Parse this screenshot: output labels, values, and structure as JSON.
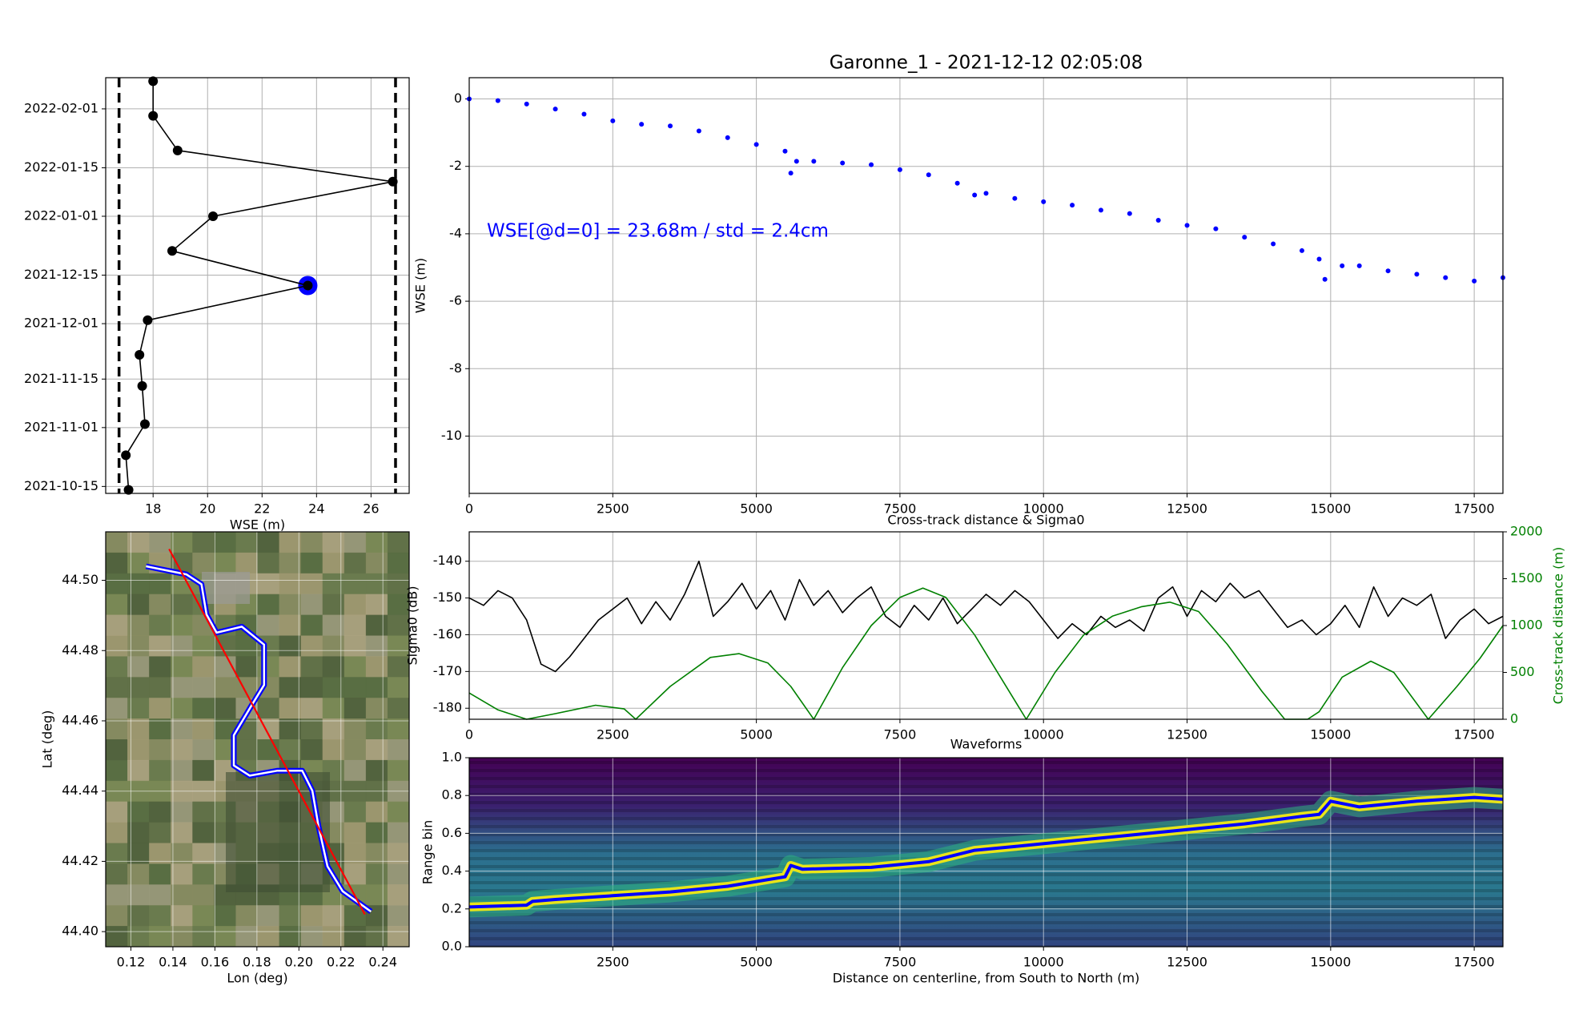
{
  "chart_data": [
    {
      "type": "line",
      "xlabel": "WSE (m)",
      "xlim": [
        16.26,
        27.4
      ],
      "xticks": [
        18,
        20,
        22,
        24,
        26
      ],
      "ylim": [
        "2021-10-13",
        "2022-02-10"
      ],
      "yticks": [
        "2021-10-15",
        "2021-11-01",
        "2021-11-15",
        "2021-12-01",
        "2021-12-15",
        "2022-01-01",
        "2022-01-15",
        "2022-02-01"
      ],
      "grid": true,
      "vlines": [
        16.75,
        26.9
      ],
      "vline_color": "black",
      "series": [
        {
          "color": "blue",
          "marker": "big-dot",
          "x": [
            23.68
          ],
          "values": [
            "2021-12-12"
          ]
        },
        {
          "color": "black",
          "marker": "dot",
          "x": [
            17.1,
            17.0,
            17.7,
            17.6,
            17.5,
            17.8,
            23.68,
            18.7,
            20.2,
            26.8,
            18.9,
            18.0,
            18.0
          ],
          "values": [
            "2021-10-14",
            "2021-10-24",
            "2021-11-02",
            "2021-11-13",
            "2021-11-22",
            "2021-12-02",
            "2021-12-12",
            "2021-12-22",
            "2022-01-01",
            "2022-01-11",
            "2022-01-20",
            "2022-01-30",
            "2022-02-09"
          ]
        }
      ]
    },
    {
      "type": "scatter",
      "title": "Garonne_1 - 2021-12-12 02:05:08",
      "ylabel": "WSE (m)",
      "annotation": "WSE[@d=0] = 23.68m / std = 2.4cm",
      "annotation_color": "blue",
      "xlim": [
        0,
        18000
      ],
      "xticks": [
        0,
        2500,
        5000,
        7500,
        10000,
        12500,
        15000,
        17500
      ],
      "ylim": [
        -11.7,
        0.63
      ],
      "yticks": [
        0,
        -2,
        -4,
        -6,
        -8,
        -10
      ],
      "grid": true,
      "series": [
        {
          "color": "blue",
          "x": [
            0,
            500,
            1000,
            1500,
            2000,
            2500,
            3000,
            3500,
            4000,
            4500,
            5000,
            5500,
            5600,
            5700,
            6000,
            6500,
            7000,
            7500,
            8000,
            8500,
            8800,
            9000,
            9500,
            10000,
            10500,
            11000,
            11500,
            12000,
            12500,
            13000,
            13500,
            14000,
            14500,
            14800,
            14900,
            15200,
            15500,
            16000,
            16500,
            17000,
            17500,
            18000
          ],
          "values": [
            0,
            -0.05,
            -0.15,
            -0.3,
            -0.45,
            -0.65,
            -0.75,
            -0.8,
            -0.95,
            -1.15,
            -1.35,
            -1.55,
            -2.2,
            -1.85,
            -1.85,
            -1.9,
            -1.95,
            -2.1,
            -2.25,
            -2.5,
            -2.85,
            -2.8,
            -2.95,
            -3.05,
            -3.15,
            -3.3,
            -3.4,
            -3.6,
            -3.75,
            -3.85,
            -4.1,
            -4.3,
            -4.5,
            -4.75,
            -5.35,
            -4.95,
            -4.95,
            -5.1,
            -5.2,
            -5.3,
            -5.4,
            -5.3
          ]
        }
      ]
    },
    {
      "type": "line",
      "background": "satellite",
      "xlabel": "Lon (deg)",
      "ylabel": "Lat (deg)",
      "xlim": [
        0.108,
        0.2525
      ],
      "xticks": [
        0.12,
        0.14,
        0.16,
        0.18,
        {
          "value": 0.2,
          "label": "0.20"
        },
        0.22,
        0.24
      ],
      "ylim": [
        44.3957,
        44.5138
      ],
      "yticks": [
        {
          "value": 44.4,
          "label": "44.40"
        },
        44.42,
        44.44,
        44.46,
        44.48,
        {
          "value": 44.5,
          "label": "44.50"
        }
      ],
      "grid": true,
      "series": [
        {
          "color": "blue",
          "inner_color": "white",
          "x": [
            0.1272,
            0.1464,
            0.1536,
            0.156,
            0.1608,
            0.1728,
            0.1834,
            0.1834,
            0.1776,
            0.169,
            0.169,
            0.1766,
            0.1896,
            0.2016,
            0.2064,
            0.2093,
            0.2136,
            0.2208,
            0.2343
          ],
          "values": [
            44.504,
            44.5017,
            44.4989,
            44.4903,
            44.4851,
            44.4868,
            44.4817,
            44.4702,
            44.4645,
            44.4559,
            44.4473,
            44.4444,
            44.4458,
            44.4458,
            44.4401,
            44.4301,
            44.4186,
            44.4115,
            44.4057
          ]
        },
        {
          "color": "red",
          "x": [
            0.1382,
            0.2314
          ],
          "values": [
            44.5089,
            44.4049
          ]
        }
      ]
    },
    {
      "type": "line",
      "title": "Cross-track distance & Sigma0",
      "ylabel": "Sigma0 (dB)",
      "y2label": "Cross-track distance (m)",
      "y2_color": "green",
      "xlim": [
        0,
        18000
      ],
      "xticks": [
        0,
        2500,
        5000,
        7500,
        10000,
        12500,
        15000,
        17500
      ],
      "ylim": [
        -183,
        -132
      ],
      "yticks": [
        -180,
        -170,
        -160,
        -150,
        -140
      ],
      "y2lim": [
        0,
        2000
      ],
      "y2ticks": [
        0,
        500,
        1000,
        1500,
        2000
      ],
      "grid": true,
      "series": [
        {
          "color": "black",
          "x": [
            0,
            250,
            500,
            750,
            1000,
            1250,
            1500,
            1750,
            2000,
            2250,
            2500,
            2750,
            3000,
            3250,
            3500,
            3750,
            4000,
            4250,
            4500,
            4750,
            5000,
            5250,
            5500,
            5750,
            6000,
            6250,
            6500,
            6750,
            7000,
            7250,
            7500,
            7750,
            8000,
            8250,
            8500,
            8750,
            9000,
            9250,
            9500,
            9750,
            10000,
            10250,
            10500,
            10750,
            11000,
            11250,
            11500,
            11750,
            12000,
            12250,
            12500,
            12750,
            13000,
            13250,
            13500,
            13750,
            14000,
            14250,
            14500,
            14750,
            15000,
            15250,
            15500,
            15750,
            16000,
            16250,
            16500,
            16750,
            17000,
            17250,
            17500,
            17750,
            18000
          ],
          "values": [
            -150,
            -152,
            -148,
            -150,
            -156,
            -168,
            -170,
            -166,
            -161,
            -156,
            -153,
            -150,
            -157,
            -151,
            -156,
            -149,
            -140,
            -155,
            -151,
            -146,
            -153,
            -148,
            -156,
            -145,
            -152,
            -148,
            -154,
            -150,
            -147,
            -155,
            -158,
            -152,
            -156,
            -150,
            -157,
            -153,
            -149,
            -152,
            -148,
            -151,
            -156,
            -161,
            -157,
            -160,
            -155,
            -158,
            -156,
            -159,
            -150,
            -147,
            -155,
            -148,
            -151,
            -146,
            -150,
            -148,
            -153,
            -158,
            -156,
            -160,
            -157,
            -152,
            -158,
            -147,
            -155,
            -150,
            -152,
            -149,
            -161,
            -156,
            -153,
            -157,
            -155
          ]
        },
        {
          "color": "green",
          "axis": "y2",
          "x": [
            0,
            500,
            1000,
            1500,
            2200,
            2700,
            2900,
            3500,
            4200,
            4700,
            5200,
            5600,
            6000,
            6500,
            7000,
            7500,
            7900,
            8300,
            8800,
            9300,
            9700,
            10200,
            10700,
            11200,
            11700,
            12200,
            12700,
            13200,
            13800,
            14200,
            14600,
            14800,
            15200,
            15700,
            16100,
            16700,
            17200,
            17600,
            18000
          ],
          "values": [
            280,
            100,
            0,
            60,
            150,
            110,
            0,
            350,
            660,
            700,
            600,
            350,
            0,
            550,
            1000,
            1300,
            1400,
            1300,
            900,
            400,
            0,
            500,
            900,
            1100,
            1200,
            1250,
            1150,
            800,
            300,
            0,
            0,
            80,
            450,
            620,
            500,
            0,
            350,
            650,
            1000
          ]
        }
      ]
    },
    {
      "type": "line",
      "background": "viridis",
      "title": "Waveforms",
      "xlabel": "Distance on centerline, from South to North (m)",
      "ylabel": "Range bin",
      "xlim": [
        0,
        18000
      ],
      "xticks": [
        2500,
        5000,
        7500,
        10000,
        12500,
        15000,
        17500
      ],
      "ylim": [
        0,
        1
      ],
      "yticks": [
        {
          "value": 0,
          "label": "0.0"
        },
        0.2,
        0.4,
        0.6,
        0.8,
        {
          "value": 1,
          "label": "1.0"
        }
      ],
      "grid": true,
      "series": [
        {
          "color": "blue",
          "x": [
            0,
            1000,
            1100,
            1500,
            2500,
            3500,
            4500,
            5500,
            5600,
            5800,
            7000,
            8000,
            8800,
            9500,
            10500,
            11500,
            12500,
            13500,
            14500,
            14800,
            15000,
            15500,
            16500,
            17500,
            18000
          ],
          "values": [
            0.21,
            0.22,
            0.24,
            0.25,
            0.27,
            0.29,
            0.32,
            0.37,
            0.43,
            0.41,
            0.42,
            0.45,
            0.51,
            0.53,
            0.56,
            0.59,
            0.62,
            0.65,
            0.69,
            0.7,
            0.77,
            0.74,
            0.77,
            0.79,
            0.78
          ]
        }
      ]
    }
  ]
}
